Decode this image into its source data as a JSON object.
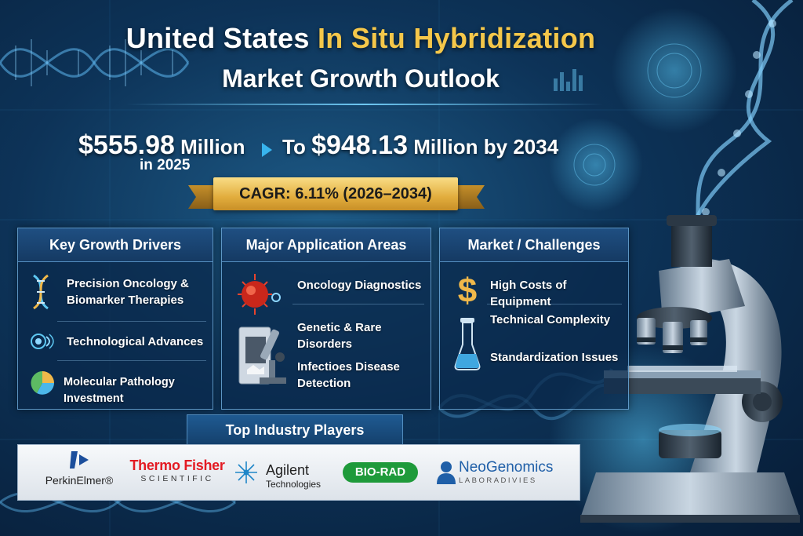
{
  "title": {
    "prefix": "United States",
    "highlight": "In Situ Hybridization",
    "line2": "Market Growth Outlook"
  },
  "stats": {
    "from_value": "$555.98",
    "from_unit": "Million",
    "from_year": "in 2025",
    "to_prefix": "To",
    "to_value": "$948.13",
    "to_suffix": "Million by 2034"
  },
  "cagr": "CAGR: 6.11% (2026–2034)",
  "panels": {
    "drivers": {
      "title": "Key Growth Drivers",
      "items": [
        {
          "label_line1": "Precision Oncology &",
          "label_line2": "Biomarker Therapies",
          "icon": "dna-icon"
        },
        {
          "label": "Technological Advances",
          "icon": "tech-circuit-icon"
        },
        {
          "label": "Molecular Pathology Investment",
          "icon": "pie-chart-icon"
        }
      ]
    },
    "applications": {
      "title": "Major Application Areas",
      "items": [
        {
          "label": "Oncology Diagnostics",
          "icon": "cancer-cell-icon"
        },
        {
          "label": "Genetic & Rare Disorders",
          "icon": "microscope-icon"
        },
        {
          "label_line1": "Infectioes Disease",
          "label_line2": "Detection"
        }
      ]
    },
    "challenges": {
      "title": "Market / Challenges",
      "items": [
        {
          "label": "High Costs of Equipment",
          "icon": "dollar-icon"
        },
        {
          "label": "Technical Complexity",
          "icon": "flask-icon"
        },
        {
          "label": "Standardization Issues"
        }
      ]
    }
  },
  "players": {
    "title": "Top Industry Players",
    "perkinelmer": "PerkinElmer®",
    "thermo_line1": "Thermo Fisher",
    "thermo_line2": "SCIENTIFIC",
    "agilent_line1": "Agilent",
    "agilent_line2": "Technologies",
    "biorad": "BIO-RAD",
    "neo_line1": "NeoGenomics",
    "neo_line2": "LABORADIVIES"
  },
  "colors": {
    "accent_gold": "#f4c74a",
    "ribbon_gold": "#e2ad3d",
    "background_navy": "#0d3358",
    "thermo_red": "#e31b23",
    "biorad_green": "#1e9a3a",
    "neogenomics_blue": "#1f5fa8",
    "perkinelmer_blue": "#1c4f9c"
  }
}
